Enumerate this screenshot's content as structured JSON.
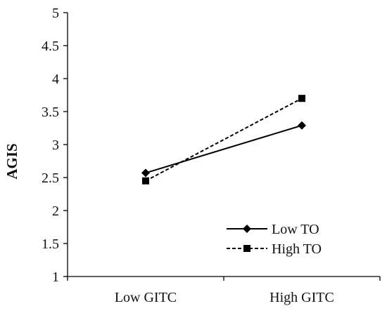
{
  "chart_data": {
    "type": "line",
    "title": "",
    "xlabel": "",
    "ylabel": "AGIS",
    "categories": [
      "Low GITC",
      "High GITC"
    ],
    "ylim": [
      1,
      5
    ],
    "yticks": [
      "1",
      "1.5",
      "2",
      "2.5",
      "3",
      "3.5",
      "4",
      "4.5",
      "5"
    ],
    "grid": false,
    "legend_position": "bottom-right",
    "series": [
      {
        "name": "Low TO",
        "values": [
          2.57,
          3.29
        ],
        "line_style": "solid",
        "marker": "diamond",
        "color": "#000000"
      },
      {
        "name": "High TO",
        "values": [
          2.45,
          3.7
        ],
        "line_style": "dashed",
        "marker": "square",
        "color": "#000000"
      }
    ]
  }
}
